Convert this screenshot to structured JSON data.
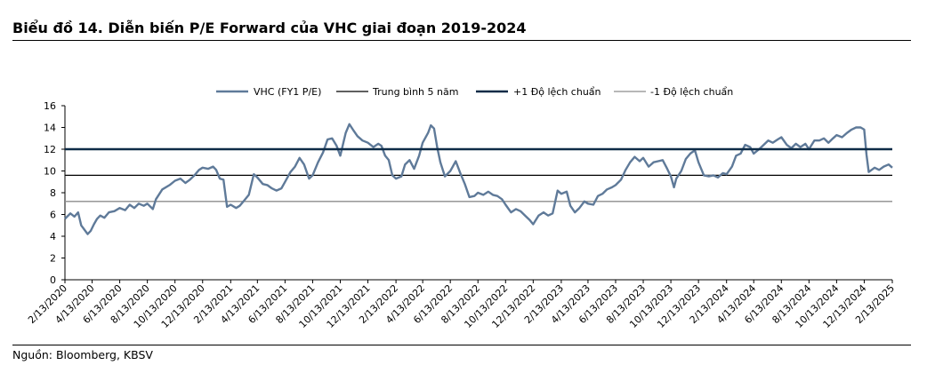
{
  "header": {
    "title": "Biểu đồ 14. Diễn biến P/E Forward của VHC giai đoạn 2019-2024"
  },
  "footer": {
    "source": "Nguồn: Bloomberg, KBSV"
  },
  "chart_data": {
    "type": "line",
    "ylim": [
      0,
      16
    ],
    "yticks": [
      0,
      2,
      4,
      6,
      8,
      10,
      12,
      14,
      16
    ],
    "xlim": [
      "2020-02-13",
      "2025-02-13"
    ],
    "xtick_labels": [
      "2/13/2020",
      "4/13/2020",
      "6/13/2020",
      "8/13/2020",
      "10/13/2020",
      "12/13/2020",
      "2/13/2021",
      "4/13/2021",
      "6/13/2021",
      "8/13/2021",
      "10/13/2021",
      "12/13/2021",
      "2/13/2022",
      "4/13/2022",
      "6/13/2022",
      "8/13/2022",
      "10/13/2022",
      "12/13/2022",
      "2/13/2023",
      "4/13/2023",
      "6/13/2023",
      "8/13/2023",
      "10/13/2023",
      "12/13/2023",
      "2/13/2024",
      "4/13/2024",
      "6/13/2024",
      "8/13/2024",
      "10/13/2024",
      "12/13/2024",
      "2/13/2025"
    ],
    "legend_position": "top",
    "grid": false,
    "series": [
      {
        "name": "VHC (FY1 P/E)",
        "color": "#5f7a99",
        "points": [
          [
            "2020-02-13",
            5.6
          ],
          [
            "2020-02-25",
            6.1
          ],
          [
            "2020-03-05",
            5.8
          ],
          [
            "2020-03-13",
            6.2
          ],
          [
            "2020-03-20",
            5.0
          ],
          [
            "2020-03-27",
            4.6
          ],
          [
            "2020-04-03",
            4.2
          ],
          [
            "2020-04-10",
            4.5
          ],
          [
            "2020-04-17",
            5.1
          ],
          [
            "2020-04-24",
            5.6
          ],
          [
            "2020-05-01",
            5.9
          ],
          [
            "2020-05-10",
            5.7
          ],
          [
            "2020-05-20",
            6.2
          ],
          [
            "2020-06-01",
            6.3
          ],
          [
            "2020-06-13",
            6.6
          ],
          [
            "2020-06-25",
            6.4
          ],
          [
            "2020-07-05",
            6.9
          ],
          [
            "2020-07-15",
            6.6
          ],
          [
            "2020-07-25",
            7.0
          ],
          [
            "2020-08-05",
            6.8
          ],
          [
            "2020-08-13",
            7.0
          ],
          [
            "2020-08-25",
            6.5
          ],
          [
            "2020-09-01",
            7.4
          ],
          [
            "2020-09-15",
            8.3
          ],
          [
            "2020-10-01",
            8.7
          ],
          [
            "2020-10-13",
            9.1
          ],
          [
            "2020-10-25",
            9.3
          ],
          [
            "2020-11-05",
            8.9
          ],
          [
            "2020-11-15",
            9.2
          ],
          [
            "2020-11-25",
            9.6
          ],
          [
            "2020-12-05",
            10.1
          ],
          [
            "2020-12-13",
            10.3
          ],
          [
            "2020-12-25",
            10.2
          ],
          [
            "2021-01-05",
            10.4
          ],
          [
            "2021-01-12",
            10.1
          ],
          [
            "2021-01-20",
            9.3
          ],
          [
            "2021-01-28",
            9.2
          ],
          [
            "2021-02-05",
            6.7
          ],
          [
            "2021-02-13",
            6.9
          ],
          [
            "2021-02-25",
            6.6
          ],
          [
            "2021-03-05",
            6.8
          ],
          [
            "2021-03-15",
            7.3
          ],
          [
            "2021-03-25",
            7.8
          ],
          [
            "2021-04-05",
            9.7
          ],
          [
            "2021-04-13",
            9.4
          ],
          [
            "2021-04-25",
            8.8
          ],
          [
            "2021-05-05",
            8.7
          ],
          [
            "2021-05-15",
            8.4
          ],
          [
            "2021-05-25",
            8.2
          ],
          [
            "2021-06-05",
            8.4
          ],
          [
            "2021-06-13",
            9.0
          ],
          [
            "2021-06-25",
            9.9
          ],
          [
            "2021-07-05",
            10.4
          ],
          [
            "2021-07-15",
            11.2
          ],
          [
            "2021-07-25",
            10.6
          ],
          [
            "2021-08-05",
            9.3
          ],
          [
            "2021-08-13",
            9.6
          ],
          [
            "2021-08-25",
            10.8
          ],
          [
            "2021-09-05",
            11.7
          ],
          [
            "2021-09-15",
            12.9
          ],
          [
            "2021-09-25",
            13.0
          ],
          [
            "2021-10-05",
            12.3
          ],
          [
            "2021-10-13",
            11.4
          ],
          [
            "2021-10-25",
            13.5
          ],
          [
            "2021-11-02",
            14.3
          ],
          [
            "2021-11-10",
            13.8
          ],
          [
            "2021-11-20",
            13.2
          ],
          [
            "2021-12-01",
            12.8
          ],
          [
            "2021-12-13",
            12.6
          ],
          [
            "2021-12-25",
            12.2
          ],
          [
            "2022-01-05",
            12.5
          ],
          [
            "2022-01-12",
            12.3
          ],
          [
            "2022-01-20",
            11.4
          ],
          [
            "2022-01-28",
            11.0
          ],
          [
            "2022-02-05",
            9.6
          ],
          [
            "2022-02-13",
            9.3
          ],
          [
            "2022-02-25",
            9.5
          ],
          [
            "2022-03-05",
            10.6
          ],
          [
            "2022-03-15",
            11.0
          ],
          [
            "2022-03-25",
            10.2
          ],
          [
            "2022-04-05",
            11.4
          ],
          [
            "2022-04-13",
            12.6
          ],
          [
            "2022-04-25",
            13.5
          ],
          [
            "2022-05-01",
            14.2
          ],
          [
            "2022-05-08",
            13.9
          ],
          [
            "2022-05-15",
            12.2
          ],
          [
            "2022-05-22",
            10.8
          ],
          [
            "2022-06-01",
            9.5
          ],
          [
            "2022-06-13",
            10.0
          ],
          [
            "2022-06-25",
            10.9
          ],
          [
            "2022-07-05",
            9.8
          ],
          [
            "2022-07-15",
            8.8
          ],
          [
            "2022-07-25",
            7.6
          ],
          [
            "2022-08-05",
            7.7
          ],
          [
            "2022-08-13",
            8.0
          ],
          [
            "2022-08-25",
            7.8
          ],
          [
            "2022-09-05",
            8.1
          ],
          [
            "2022-09-15",
            7.8
          ],
          [
            "2022-09-25",
            7.7
          ],
          [
            "2022-10-05",
            7.4
          ],
          [
            "2022-10-13",
            6.9
          ],
          [
            "2022-10-25",
            6.2
          ],
          [
            "2022-11-05",
            6.5
          ],
          [
            "2022-11-15",
            6.3
          ],
          [
            "2022-11-25",
            5.9
          ],
          [
            "2022-12-05",
            5.5
          ],
          [
            "2022-12-13",
            5.1
          ],
          [
            "2022-12-25",
            5.9
          ],
          [
            "2023-01-05",
            6.2
          ],
          [
            "2023-01-15",
            5.9
          ],
          [
            "2023-01-25",
            6.1
          ],
          [
            "2023-02-05",
            8.2
          ],
          [
            "2023-02-13",
            7.9
          ],
          [
            "2023-02-25",
            8.1
          ],
          [
            "2023-03-05",
            6.8
          ],
          [
            "2023-03-15",
            6.2
          ],
          [
            "2023-03-25",
            6.6
          ],
          [
            "2023-04-05",
            7.2
          ],
          [
            "2023-04-13",
            7.0
          ],
          [
            "2023-04-25",
            6.9
          ],
          [
            "2023-05-05",
            7.7
          ],
          [
            "2023-05-15",
            7.9
          ],
          [
            "2023-05-25",
            8.3
          ],
          [
            "2023-06-05",
            8.5
          ],
          [
            "2023-06-13",
            8.7
          ],
          [
            "2023-06-25",
            9.2
          ],
          [
            "2023-07-05",
            10.1
          ],
          [
            "2023-07-15",
            10.8
          ],
          [
            "2023-07-25",
            11.3
          ],
          [
            "2023-08-05",
            10.9
          ],
          [
            "2023-08-13",
            11.2
          ],
          [
            "2023-08-25",
            10.4
          ],
          [
            "2023-09-05",
            10.8
          ],
          [
            "2023-09-15",
            10.9
          ],
          [
            "2023-09-25",
            11.0
          ],
          [
            "2023-10-05",
            10.2
          ],
          [
            "2023-10-13",
            9.5
          ],
          [
            "2023-10-20",
            8.5
          ],
          [
            "2023-10-25",
            9.3
          ],
          [
            "2023-11-05",
            10.0
          ],
          [
            "2023-11-15",
            11.1
          ],
          [
            "2023-11-25",
            11.6
          ],
          [
            "2023-12-05",
            11.9
          ],
          [
            "2023-12-13",
            10.8
          ],
          [
            "2023-12-25",
            9.6
          ],
          [
            "2024-01-05",
            9.5
          ],
          [
            "2024-01-15",
            9.6
          ],
          [
            "2024-01-25",
            9.4
          ],
          [
            "2024-02-05",
            9.8
          ],
          [
            "2024-02-13",
            9.7
          ],
          [
            "2024-02-25",
            10.4
          ],
          [
            "2024-03-05",
            11.4
          ],
          [
            "2024-03-15",
            11.6
          ],
          [
            "2024-03-25",
            12.4
          ],
          [
            "2024-04-05",
            12.2
          ],
          [
            "2024-04-13",
            11.6
          ],
          [
            "2024-04-25",
            12.0
          ],
          [
            "2024-05-05",
            12.4
          ],
          [
            "2024-05-15",
            12.8
          ],
          [
            "2024-05-25",
            12.6
          ],
          [
            "2024-06-05",
            12.9
          ],
          [
            "2024-06-13",
            13.1
          ],
          [
            "2024-06-25",
            12.4
          ],
          [
            "2024-07-05",
            12.1
          ],
          [
            "2024-07-15",
            12.5
          ],
          [
            "2024-07-25",
            12.2
          ],
          [
            "2024-08-05",
            12.5
          ],
          [
            "2024-08-13",
            12.0
          ],
          [
            "2024-08-25",
            12.8
          ],
          [
            "2024-09-05",
            12.8
          ],
          [
            "2024-09-15",
            13.0
          ],
          [
            "2024-09-25",
            12.6
          ],
          [
            "2024-10-05",
            13.0
          ],
          [
            "2024-10-13",
            13.3
          ],
          [
            "2024-10-25",
            13.1
          ],
          [
            "2024-11-05",
            13.5
          ],
          [
            "2024-11-15",
            13.8
          ],
          [
            "2024-11-25",
            14.0
          ],
          [
            "2024-12-05",
            14.0
          ],
          [
            "2024-12-13",
            13.8
          ],
          [
            "2024-12-18",
            11.5
          ],
          [
            "2024-12-23",
            9.9
          ],
          [
            "2025-01-05",
            10.3
          ],
          [
            "2025-01-15",
            10.1
          ],
          [
            "2025-01-25",
            10.4
          ],
          [
            "2025-02-05",
            10.6
          ],
          [
            "2025-02-13",
            10.3
          ]
        ]
      },
      {
        "name": "Trung bình 5 năm",
        "color": "#000000",
        "value": 9.6
      },
      {
        "name": "+1 Độ lệch chuẩn",
        "color": "#0d2b47",
        "value": 12.0
      },
      {
        "name": "-1 Độ lệch chuẩn",
        "color": "#8c8c8c",
        "value": 7.2
      }
    ]
  }
}
